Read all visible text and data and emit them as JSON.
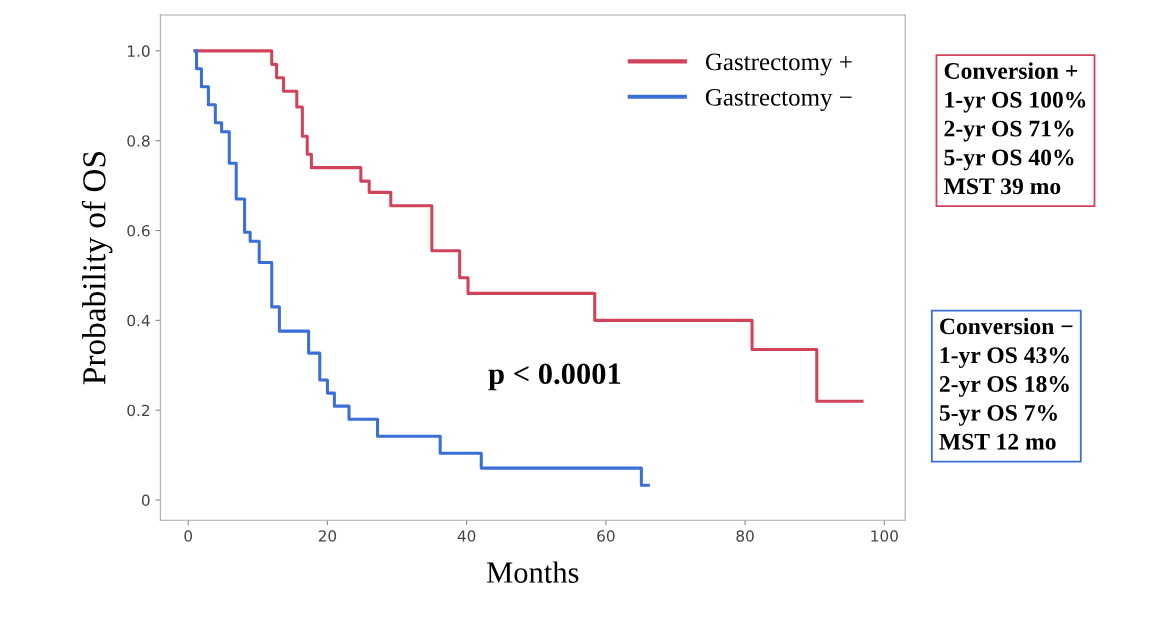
{
  "chart_data": {
    "type": "step",
    "xlabel": "Months",
    "ylabel": "Probability of OS",
    "series": [
      {
        "name": "Gastrectomy +",
        "color": "#d1435b",
        "x": [
          1,
          12.0,
          12.7,
          13.7,
          15.6,
          16.4,
          17.1,
          17.7,
          24.8,
          26.0,
          29.1,
          35.0,
          39.0,
          40.2,
          58.4,
          81.0,
          90.3,
          96.8
        ],
        "values": [
          1.0,
          0.97,
          0.94,
          0.91,
          0.875,
          0.81,
          0.77,
          0.74,
          0.71,
          0.685,
          0.655,
          0.555,
          0.495,
          0.46,
          0.4,
          0.335,
          0.22,
          0.22
        ]
      },
      {
        "name": "Gastrectomy −",
        "color": "#3a6fd8",
        "x": [
          1,
          1.2,
          1.9,
          2.9,
          3.9,
          4.8,
          5.9,
          6.9,
          8.1,
          8.9,
          10.2,
          12.0,
          13.1,
          17.3,
          18.9,
          20.0,
          21.0,
          23.1,
          27.2,
          36.2,
          42.1,
          65.1,
          66.1
        ],
        "values": [
          1.0,
          0.96,
          0.92,
          0.88,
          0.84,
          0.82,
          0.75,
          0.67,
          0.596,
          0.576,
          0.529,
          0.43,
          0.376,
          0.327,
          0.267,
          0.238,
          0.209,
          0.18,
          0.142,
          0.104,
          0.071,
          0.033,
          0.033
        ]
      }
    ],
    "xlim": [
      -4,
      103
    ],
    "ylim": [
      -0.045,
      1.08
    ],
    "xticks": [
      0,
      20,
      40,
      60,
      80,
      100
    ],
    "yticks": [
      0,
      0.2,
      0.4,
      0.6,
      0.8,
      {
        "value": 1,
        "label": "1.0"
      }
    ],
    "legend": "top right",
    "grid": false,
    "annotations": [
      "p < 0.0001",
      "Conversion +\n1-yr OS 100%\n2-yr OS 71%\n5-yr OS 40%\nMST 39 mo",
      "Conversion −\n1-yr OS 43%\n2-yr OS 18%\n5-yr OS 7%\nMST 12 mo"
    ]
  }
}
